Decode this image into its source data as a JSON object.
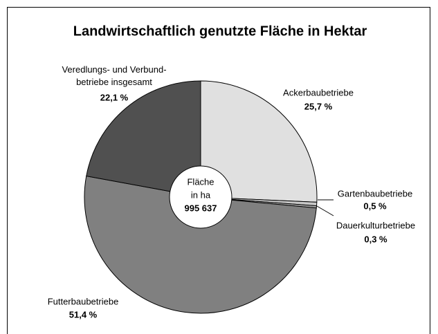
{
  "chart_data": {
    "type": "pie",
    "title": "Landwirtschaftlich genutzte Fläche in Hektar",
    "categories": [
      "Ackerbaubetriebe",
      "Gartenbaubetriebe",
      "Dauerkulturbetriebe",
      "Futterbaubetriebe",
      "Veredlungs- und Verbund-\nbetriebe insgesamt"
    ],
    "values": [
      25.7,
      0.5,
      0.3,
      51.4,
      22.1
    ],
    "value_labels": [
      "25,7 %",
      "0,5 %",
      "0,3 %",
      "51,4 %",
      "22,1 %"
    ],
    "colors": [
      "#e0e0e0",
      "#c8c8c8",
      "#a8a8a8",
      "#808080",
      "#505050"
    ],
    "center_text": [
      "Fläche",
      "in ha"
    ],
    "center_value": "995 637"
  }
}
